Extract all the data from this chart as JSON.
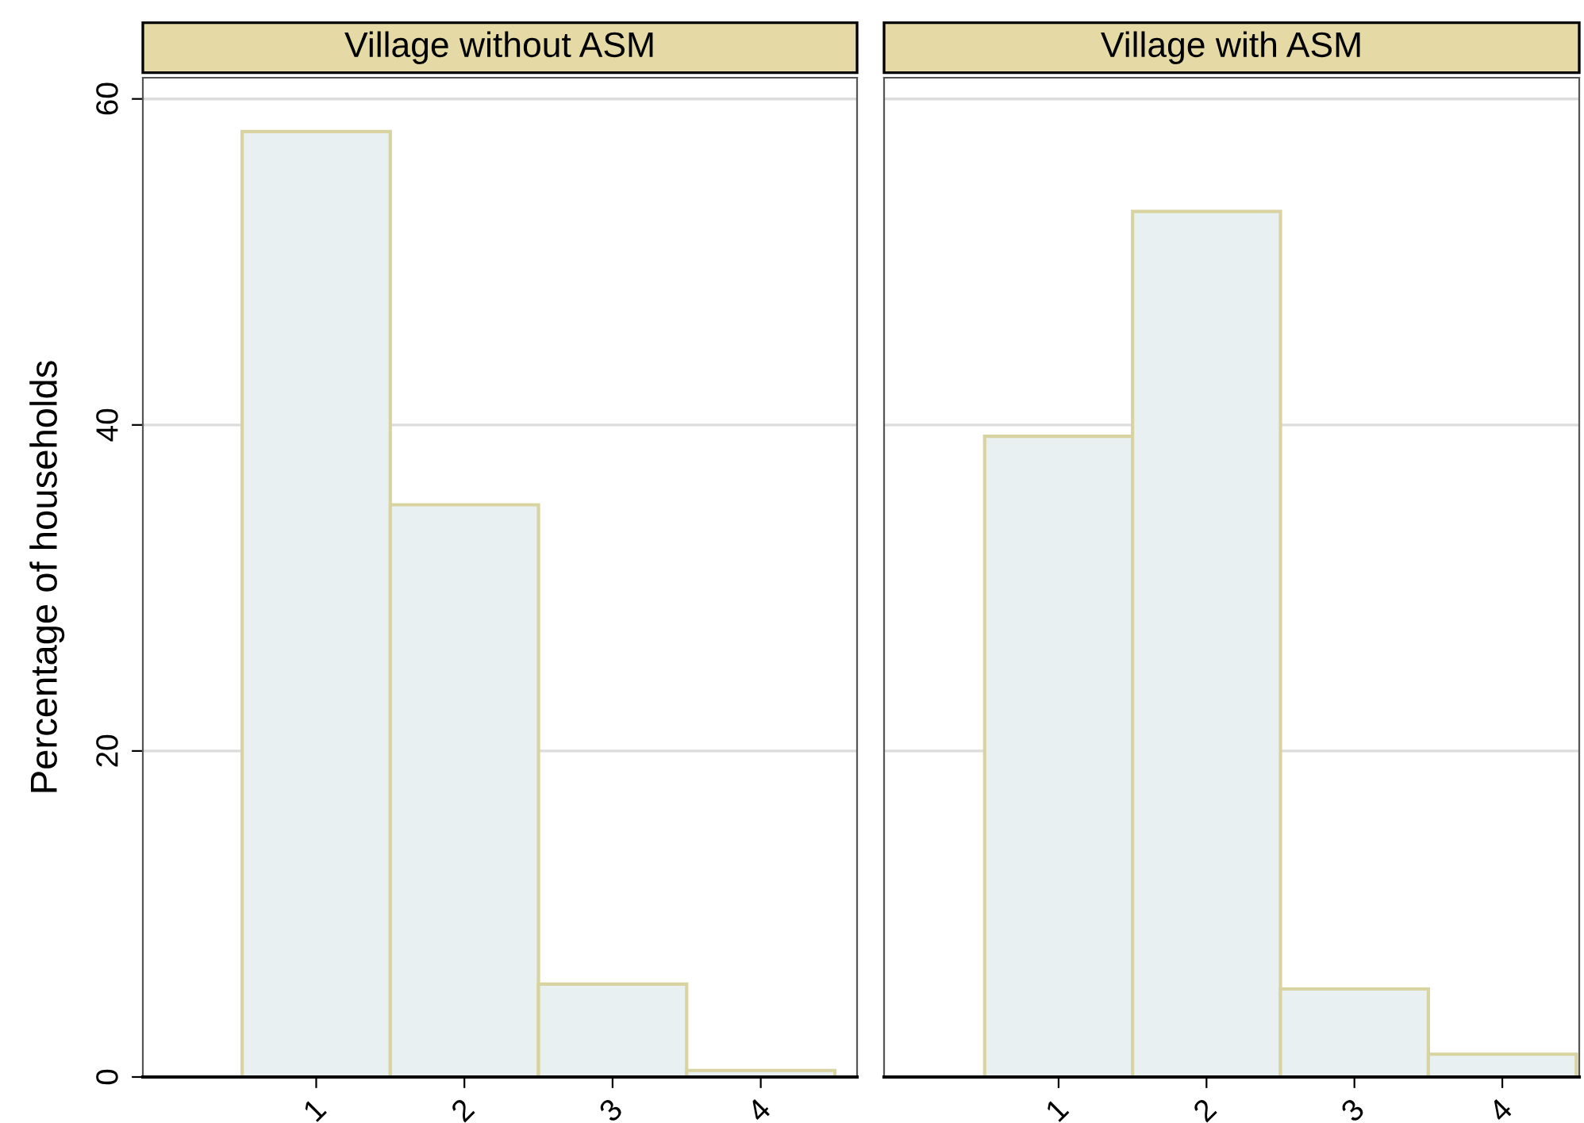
{
  "chart_data": [
    {
      "type": "histogram",
      "title": "Village without ASM",
      "ylabel": "Percentage of households",
      "bins": [
        0.5,
        1.5,
        2.5,
        3.5,
        4.5
      ],
      "values": [
        58.0,
        35.1,
        5.7,
        0.4
      ],
      "color": "#e8f0f2",
      "xlim": [
        -0.17,
        4.65
      ],
      "xticks": [
        1,
        2,
        3,
        4
      ],
      "ylim": [
        0,
        61.3
      ],
      "yticks": [
        0,
        20,
        40,
        60
      ],
      "grid": "y"
    },
    {
      "type": "histogram",
      "title": "Village with ASM",
      "bins": [
        0.5,
        1.5,
        2.5,
        3.5,
        4.5
      ],
      "values": [
        39.3,
        53.1,
        5.4,
        1.4
      ],
      "color": "#e8f0f2",
      "xlim": [
        -0.18,
        4.52
      ],
      "xticks": [
        1,
        2,
        3,
        4
      ],
      "ylim": [
        0,
        61.3
      ],
      "yticks": [
        0,
        20,
        40,
        60
      ],
      "grid": "y",
      "tick_labels": "x"
    }
  ]
}
